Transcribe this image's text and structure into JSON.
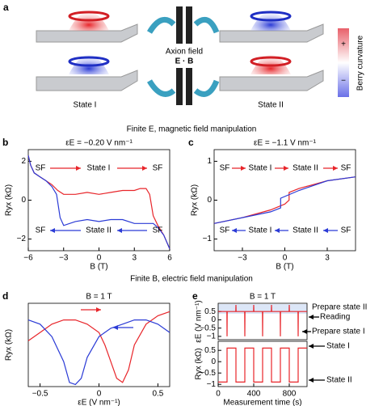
{
  "panel_a": {
    "panel": "a",
    "axion": "Axion field",
    "eb": "E · B",
    "state1": "State I",
    "state2": "State II",
    "colorbar": "Berry curvature",
    "plus": "+",
    "minus": "−"
  },
  "headings": [
    "Finite E, magnetic field manipulation",
    "Finite B, electric field manipulation"
  ],
  "chart_data": [
    {
      "type": "line",
      "panel": "b",
      "title": "εE = −0.20 V nm⁻¹",
      "xlabel": "B (T)",
      "ylabel": "Ryx (kΩ)",
      "xlim": [
        -6,
        6
      ],
      "xticks": [
        {
          "value": -6,
          "label": "−6"
        },
        {
          "value": -3,
          "label": "−3"
        },
        0,
        3,
        6
      ],
      "ylim": [
        -2.6,
        2.6
      ],
      "yticks": [
        {
          "value": -2,
          "label": "−2"
        },
        0,
        2
      ],
      "series": [
        {
          "color": "#e8252a",
          "x": [
            -6,
            -5.8,
            -5.5,
            -5,
            -4.5,
            -4,
            -3.5,
            -3,
            -2,
            -1,
            0,
            1,
            2,
            3,
            3.5,
            4,
            4.3,
            4.6,
            5,
            5.5,
            6
          ],
          "values": [
            2.3,
            1.8,
            1.4,
            1.2,
            1.0,
            0.8,
            0.5,
            0.3,
            0.3,
            0.4,
            0.3,
            0.4,
            0.5,
            0.5,
            0.6,
            0.6,
            0.3,
            -0.8,
            -1.3,
            -1.8,
            -2.5
          ]
        },
        {
          "color": "#2b3bd6",
          "x": [
            6,
            5.5,
            5,
            4.6,
            4,
            3,
            2,
            1,
            0,
            -1,
            -2,
            -3,
            -3.3,
            -3.6,
            -4,
            -4.5,
            -5,
            -5.5,
            -5.8,
            -6
          ],
          "values": [
            -2.5,
            -1.8,
            -1.4,
            -1.2,
            -1.2,
            -1.2,
            -1.0,
            -1.0,
            -1.1,
            -1.0,
            -1.1,
            -1.3,
            -0.9,
            0.3,
            0.7,
            1.0,
            1.2,
            1.4,
            1.8,
            2.3
          ]
        }
      ],
      "annotations": [
        {
          "text": "SF",
          "color": "#e8252a"
        },
        {
          "text": "State I",
          "color": "#e8252a"
        },
        {
          "text": "SF",
          "color": "#e8252a"
        },
        {
          "text": "SF",
          "color": "#2b3bd6"
        },
        {
          "text": "State II",
          "color": "#2b3bd6"
        },
        {
          "text": "SF",
          "color": "#2b3bd6"
        }
      ]
    },
    {
      "type": "line",
      "panel": "c",
      "title": "εE = −1.1 V nm⁻¹",
      "xlabel": "B (T)",
      "ylabel": "Ryx (kΩ)",
      "xlim": [
        -5,
        5
      ],
      "xticks": [
        {
          "value": -3,
          "label": "−3"
        },
        0,
        3
      ],
      "ylim": [
        -1.3,
        1.3
      ],
      "yticks": [
        {
          "value": -1,
          "label": "−1"
        },
        0,
        1
      ],
      "series": [
        {
          "color": "#e8252a",
          "x": [
            -5,
            -3,
            -1,
            0,
            0.3,
            0.3,
            1,
            3,
            5
          ],
          "values": [
            -0.6,
            -0.45,
            -0.25,
            -0.1,
            0,
            0.2,
            0.3,
            0.5,
            0.6
          ]
        },
        {
          "color": "#2b3bd6",
          "x": [
            5,
            3,
            1,
            -0.3,
            -0.3,
            -1,
            -3,
            -5
          ],
          "values": [
            0.6,
            0.5,
            0.25,
            0.05,
            -0.2,
            -0.3,
            -0.45,
            -0.6
          ]
        }
      ],
      "annotations": [
        {
          "text": "SF",
          "color": "#e8252a"
        },
        {
          "text": "State I",
          "color": "#e8252a"
        },
        {
          "text": "State II",
          "color": "#e8252a"
        },
        {
          "text": "SF",
          "color": "#e8252a"
        },
        {
          "text": "SF",
          "color": "#2b3bd6"
        },
        {
          "text": "State I",
          "color": "#2b3bd6"
        },
        {
          "text": "State II",
          "color": "#2b3bd6"
        },
        {
          "text": "SF",
          "color": "#2b3bd6"
        }
      ]
    },
    {
      "type": "line",
      "panel": "d",
      "title": "B = 1 T",
      "xlabel": "εE (V nm⁻¹)",
      "ylabel": "Ryx (kΩ)",
      "xlim": [
        -0.6,
        0.6
      ],
      "xticks": [
        {
          "value": -0.5,
          "label": "−0.5"
        },
        0,
        0.5
      ],
      "ylim": [
        -1,
        1
      ],
      "yticks": [],
      "series": [
        {
          "color": "#e8252a",
          "x": [
            -0.6,
            -0.5,
            -0.4,
            -0.3,
            -0.2,
            -0.1,
            0,
            0.05,
            0.1,
            0.15,
            0.2,
            0.25,
            0.3,
            0.4,
            0.5,
            0.6
          ],
          "values": [
            0.1,
            0.3,
            0.5,
            0.6,
            0.6,
            0.5,
            0.3,
            0.0,
            -0.4,
            -0.8,
            -0.9,
            -0.6,
            0.0,
            0.5,
            0.7,
            0.8
          ]
        },
        {
          "color": "#2b3bd6",
          "x": [
            0.6,
            0.5,
            0.4,
            0.3,
            0.2,
            0.1,
            0,
            -0.1,
            -0.15,
            -0.2,
            -0.25,
            -0.3,
            -0.4,
            -0.5,
            -0.6
          ],
          "values": [
            0.3,
            0.5,
            0.6,
            0.6,
            0.5,
            0.4,
            0.2,
            -0.3,
            -0.8,
            -0.95,
            -0.9,
            -0.4,
            0.2,
            0.5,
            0.6
          ]
        }
      ],
      "annotations": []
    },
    {
      "type": "line",
      "panel": "e",
      "title": "B = 1 T",
      "ylabel": "εE (V nm⁻¹)",
      "xlim": [
        0,
        1000
      ],
      "xticks": [],
      "ylim": [
        -1.2,
        1.0
      ],
      "yticks": [
        0.5,
        0,
        {
          "value": -0.5,
          "label": "−0.5"
        },
        {
          "value": -1,
          "label": "−1"
        }
      ],
      "series": [
        {
          "color": "#e8252a",
          "x": [
            0,
            98,
            100,
            102,
            198,
            200,
            202,
            298,
            300,
            302,
            398,
            400,
            402,
            498,
            500,
            502,
            598,
            600,
            602,
            698,
            700,
            702,
            798,
            800,
            802,
            898,
            900,
            902,
            1000
          ],
          "values": [
            0.5,
            0.5,
            -1,
            0.5,
            0.5,
            0.9,
            0.5,
            0.5,
            -1,
            0.5,
            0.5,
            0.9,
            0.5,
            0.5,
            -1,
            0.5,
            0.5,
            0.9,
            0.5,
            0.5,
            -1,
            0.5,
            0.5,
            0.9,
            0.5,
            0.5,
            -1,
            0.5,
            0.5
          ]
        }
      ],
      "annotations": [
        {
          "text": "Prepare state II",
          "color": "#000000"
        },
        {
          "text": "Reading",
          "color": "#000000"
        },
        {
          "text": "Prepare state I",
          "color": "#000000"
        }
      ]
    },
    {
      "type": "line",
      "xlabel": "Measurement time (s)",
      "ylabel": "Ryx (kΩ)",
      "xlim": [
        0,
        1000
      ],
      "xticks": [
        0,
        400,
        800
      ],
      "ylim": [
        -1.1,
        0.9
      ],
      "yticks": [
        0.5,
        0,
        {
          "value": -0.5,
          "label": "−0.5"
        },
        {
          "value": -1,
          "label": "−1"
        }
      ],
      "series": [
        {
          "color": "#e8252a",
          "x": [
            0,
            100,
            100,
            200,
            200,
            300,
            300,
            400,
            400,
            500,
            500,
            600,
            600,
            700,
            700,
            800,
            800,
            900,
            900,
            1000
          ],
          "values": [
            -0.9,
            -0.9,
            0.6,
            0.6,
            -0.9,
            -0.9,
            0.6,
            0.6,
            -0.9,
            -0.9,
            0.6,
            0.6,
            -0.9,
            -0.9,
            0.6,
            0.6,
            -0.9,
            -0.9,
            0.6,
            0.6
          ]
        }
      ],
      "annotations": [
        {
          "text": "State I",
          "color": "#000000"
        },
        {
          "text": "State II",
          "color": "#000000"
        }
      ]
    }
  ]
}
